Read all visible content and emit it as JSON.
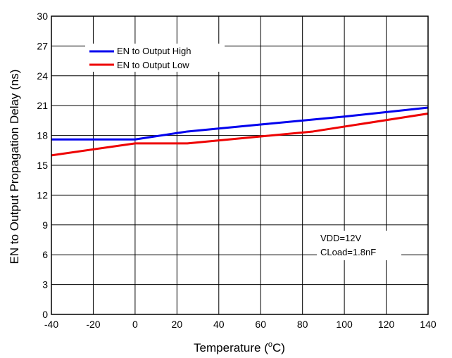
{
  "chart_data": {
    "type": "line",
    "xlabel": "Temperature (",
    "xlabel_sup": "o",
    "xlabel_unit": "C)",
    "ylabel": "EN to Output Propagation Delay (ns)",
    "xlim": [
      -40,
      140
    ],
    "ylim": [
      0,
      30
    ],
    "xticks": [
      "-40",
      "-20",
      "0",
      "20",
      "40",
      "60",
      "80",
      "100",
      "120",
      "140"
    ],
    "yticks": [
      "0",
      "3",
      "6",
      "9",
      "12",
      "15",
      "18",
      "21",
      "24",
      "27",
      "30"
    ],
    "grid": true,
    "legend_position": "top-left",
    "series": [
      {
        "name": "EN to Output High",
        "color": "#0000ee",
        "x": [
          -40,
          0,
          25,
          60,
          100,
          140
        ],
        "y": [
          17.6,
          17.6,
          18.4,
          19.1,
          19.9,
          20.8
        ]
      },
      {
        "name": "EN to Output Low",
        "color": "#ee0000",
        "x": [
          -40,
          0,
          25,
          60,
          85,
          140
        ],
        "y": [
          16.0,
          17.2,
          17.2,
          17.9,
          18.4,
          20.2
        ]
      }
    ],
    "annotations": [
      "VDD=12V",
      "CLoad=1.8nF"
    ]
  }
}
